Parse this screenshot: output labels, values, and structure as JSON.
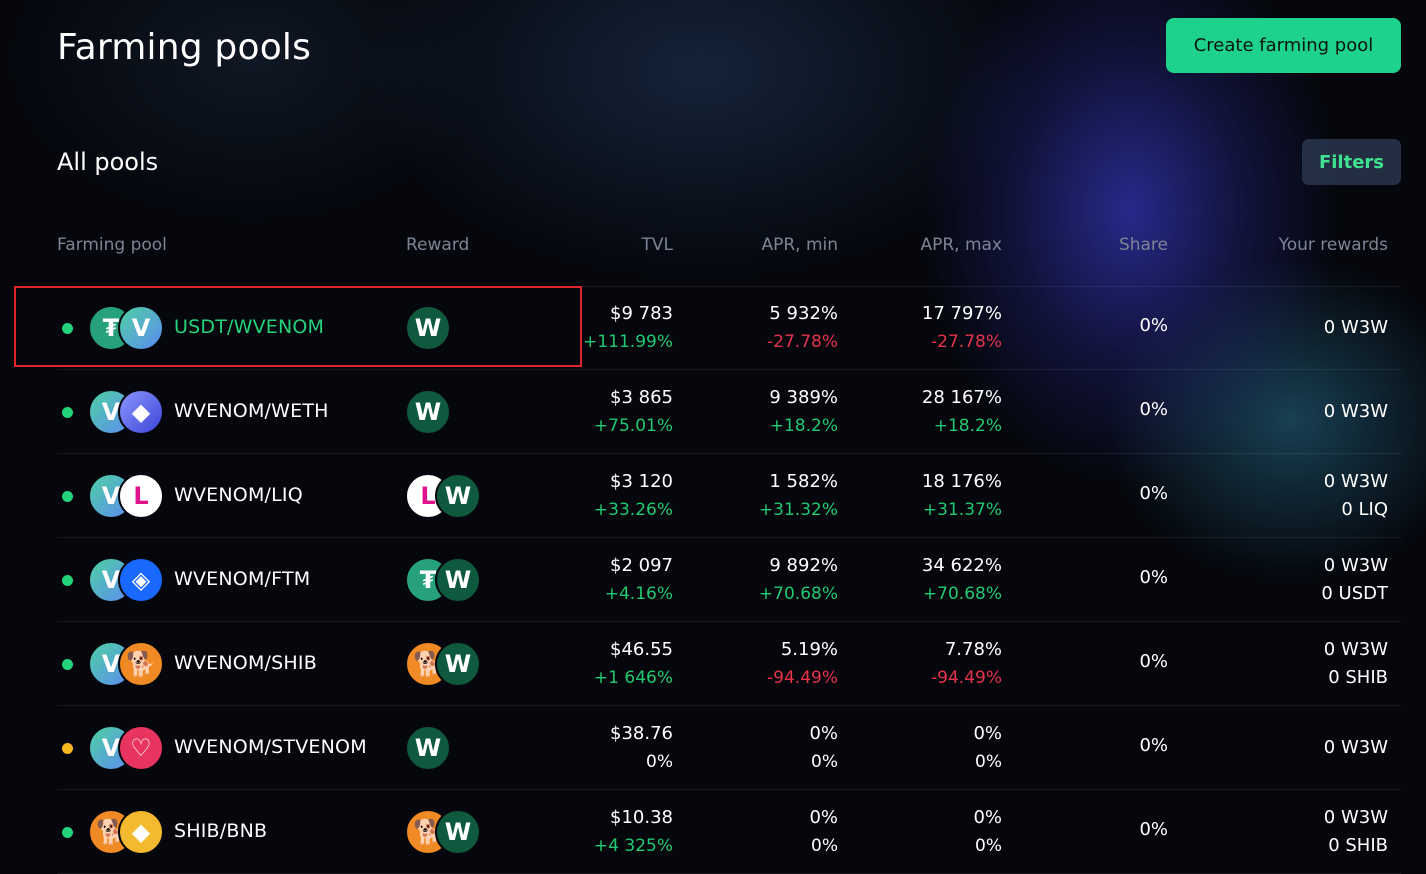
{
  "header": {
    "title": "Farming pools",
    "create_button": "Create farming pool"
  },
  "section": {
    "title": "All pools",
    "filters_button": "Filters"
  },
  "columns": {
    "pool": "Farming pool",
    "reward": "Reward",
    "tvl": "TVL",
    "apr_min": "APR, min",
    "apr_max": "APR, max",
    "share": "Share",
    "rewards": "Your rewards"
  },
  "colors": {
    "accent": "#1ed28b",
    "positive": "#22c972",
    "negative": "#e5334d",
    "highlight_border": "#e0262b"
  },
  "pools": [
    {
      "status": "green",
      "tokens": [
        {
          "icon": "usdt-icon",
          "glyph": "₮"
        },
        {
          "icon": "wvenom-icon",
          "glyph": "V"
        }
      ],
      "name": "USDT/WVENOM",
      "reward_tokens": [
        {
          "icon": "w3w-icon",
          "glyph": "W"
        }
      ],
      "tvl": "$9 783",
      "tvl_change": "+111.99%",
      "apr_min": "5 932%",
      "apr_min_change": "-27.78%",
      "apr_max": "17 797%",
      "apr_max_change": "-27.78%",
      "share": "0%",
      "rewards": [
        "0 W3W"
      ]
    },
    {
      "status": "green",
      "tokens": [
        {
          "icon": "wvenom-icon",
          "glyph": "V"
        },
        {
          "icon": "weth-icon",
          "glyph": "◆"
        }
      ],
      "name": "WVENOM/WETH",
      "reward_tokens": [
        {
          "icon": "w3w-icon",
          "glyph": "W"
        }
      ],
      "tvl": "$3 865",
      "tvl_change": "+75.01%",
      "apr_min": "9 389%",
      "apr_min_change": "+18.2%",
      "apr_max": "28 167%",
      "apr_max_change": "+18.2%",
      "share": "0%",
      "rewards": [
        "0 W3W"
      ]
    },
    {
      "status": "green",
      "tokens": [
        {
          "icon": "wvenom-icon",
          "glyph": "V"
        },
        {
          "icon": "liq-icon",
          "glyph": "L"
        }
      ],
      "name": "WVENOM/LIQ",
      "reward_tokens": [
        {
          "icon": "liq-icon",
          "glyph": "L"
        },
        {
          "icon": "w3w-icon",
          "glyph": "W"
        }
      ],
      "tvl": "$3 120",
      "tvl_change": "+33.26%",
      "apr_min": "1 582%",
      "apr_min_change": "+31.32%",
      "apr_max": "18 176%",
      "apr_max_change": "+31.37%",
      "share": "0%",
      "rewards": [
        "0 W3W",
        "0 LIQ"
      ]
    },
    {
      "status": "green",
      "tokens": [
        {
          "icon": "wvenom-icon",
          "glyph": "V"
        },
        {
          "icon": "ftm-icon",
          "glyph": "◈"
        }
      ],
      "name": "WVENOM/FTM",
      "reward_tokens": [
        {
          "icon": "usdt-icon",
          "glyph": "₮"
        },
        {
          "icon": "w3w-icon",
          "glyph": "W"
        }
      ],
      "tvl": "$2 097",
      "tvl_change": "+4.16%",
      "apr_min": "9 892%",
      "apr_min_change": "+70.68%",
      "apr_max": "34 622%",
      "apr_max_change": "+70.68%",
      "share": "0%",
      "rewards": [
        "0 W3W",
        "0 USDT"
      ]
    },
    {
      "status": "green",
      "tokens": [
        {
          "icon": "wvenom-icon",
          "glyph": "V"
        },
        {
          "icon": "shib-icon",
          "glyph": "🐕"
        }
      ],
      "name": "WVENOM/SHIB",
      "reward_tokens": [
        {
          "icon": "shib-icon",
          "glyph": "🐕"
        },
        {
          "icon": "w3w-icon",
          "glyph": "W"
        }
      ],
      "tvl": "$46.55",
      "tvl_change": "+1 646%",
      "apr_min": "5.19%",
      "apr_min_change": "-94.49%",
      "apr_max": "7.78%",
      "apr_max_change": "-94.49%",
      "share": "0%",
      "rewards": [
        "0 W3W",
        "0 SHIB"
      ]
    },
    {
      "status": "orange",
      "tokens": [
        {
          "icon": "wvenom-icon",
          "glyph": "V"
        },
        {
          "icon": "stvenom-icon",
          "glyph": "♡"
        }
      ],
      "name": "WVENOM/STVENOM",
      "reward_tokens": [
        {
          "icon": "w3w-icon",
          "glyph": "W"
        }
      ],
      "tvl": "$38.76",
      "tvl_change": "0%",
      "apr_min": "0%",
      "apr_min_change": "0%",
      "apr_max": "0%",
      "apr_max_change": "0%",
      "share": "0%",
      "rewards": [
        "0 W3W"
      ]
    },
    {
      "status": "green",
      "tokens": [
        {
          "icon": "shib-icon",
          "glyph": "🐕"
        },
        {
          "icon": "bnb-icon",
          "glyph": "◆"
        }
      ],
      "name": "SHIB/BNB",
      "reward_tokens": [
        {
          "icon": "shib-icon",
          "glyph": "🐕"
        },
        {
          "icon": "w3w-icon",
          "glyph": "W"
        }
      ],
      "tvl": "$10.38",
      "tvl_change": "+4 325%",
      "apr_min": "0%",
      "apr_min_change": "0%",
      "apr_max": "0%",
      "apr_max_change": "0%",
      "share": "0%",
      "rewards": [
        "0 W3W",
        "0 SHIB"
      ]
    }
  ]
}
